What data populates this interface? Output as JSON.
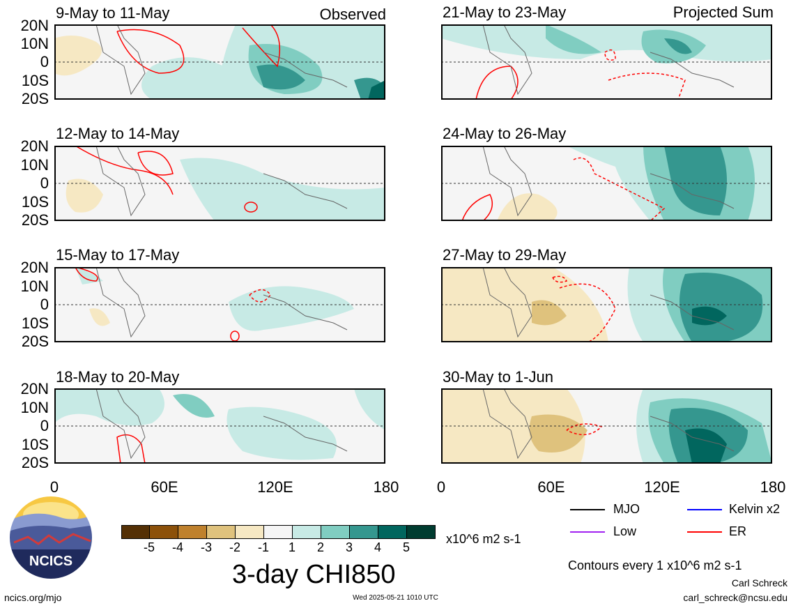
{
  "panels": [
    {
      "title": "9-May to 11-May",
      "label": "Observed"
    },
    {
      "title": "12-May to 14-May",
      "label": ""
    },
    {
      "title": "15-May to 17-May",
      "label": ""
    },
    {
      "title": "18-May to 20-May",
      "label": ""
    },
    {
      "title": "21-May to 23-May",
      "label": "Projected Sum"
    },
    {
      "title": "24-May to 26-May",
      "label": ""
    },
    {
      "title": "27-May to 29-May",
      "label": ""
    },
    {
      "title": "30-May to 1-Jun",
      "label": ""
    }
  ],
  "lat_labels": [
    "20N",
    "10N",
    "0",
    "10S",
    "20S"
  ],
  "lon_labels": [
    "0",
    "60E",
    "120E",
    "180"
  ],
  "colorbar": {
    "ticks": [
      "-5",
      "-4",
      "-3",
      "-2",
      "-1",
      "1",
      "2",
      "3",
      "4",
      "5"
    ],
    "colors": [
      "#543005",
      "#8c510a",
      "#bf812d",
      "#dfc27d",
      "#f6e8c3",
      "#f5f5f5",
      "#c7eae5",
      "#80cdc1",
      "#35978f",
      "#01665e",
      "#003c30"
    ],
    "units": "x10^6 m2 s-1"
  },
  "main_title": "3-day CHI850",
  "legend": [
    {
      "name": "MJO",
      "color": "#000000"
    },
    {
      "name": "Kelvin x2",
      "color": "#0000ff"
    },
    {
      "name": "Low",
      "color": "#a020f0"
    },
    {
      "name": "ER",
      "color": "#ff0000"
    }
  ],
  "contour_note": "Contours every 1 x10^6 m2 s-1",
  "author": "Carl Schreck",
  "email": "carl_schreck@ncsu.edu",
  "url": "ncics.org/mjo",
  "timestamp": "Wed 2025-05-21 1010 UTC",
  "logo_text": "NCICS"
}
